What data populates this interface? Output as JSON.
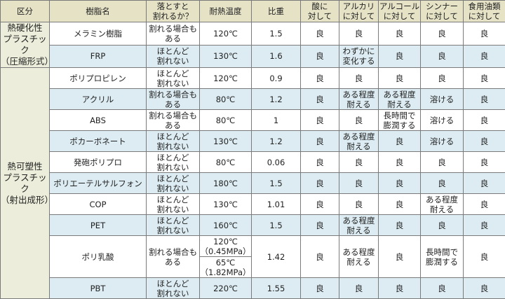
{
  "headers": [
    "区分",
    "樹脂名",
    "落とすと\n割れるか？",
    "耐熱温度",
    "比重",
    "酸に\n対して",
    "アルカリ\nに対して",
    "アルコール\nに対して",
    "シンナー\nに対して",
    "食用油類\nに対して"
  ],
  "groups": [
    {
      "label": "熱硬化性\nプラスチック\n（圧縮形式）",
      "rows": [
        {
          "name": "メラミン樹脂",
          "drop": "割れる場合も\nある",
          "heat": "120℃",
          "sg": "1.5",
          "acid": "良",
          "alkali": "良",
          "alcohol": "良",
          "thinner": "良",
          "oil": "良",
          "shaded": false
        },
        {
          "name": "FRP",
          "drop": "ほとんど\n割れない",
          "heat": "130℃",
          "sg": "1.6",
          "acid": "良",
          "alkali": "わずかに\n変化する",
          "alcohol": "良",
          "thinner": "良",
          "oil": "良",
          "shaded": true
        }
      ]
    },
    {
      "label": "熱可塑性\nプラスチック\n（射出成形）",
      "rows": [
        {
          "name": "ポリプロピレン",
          "drop": "ほとんど\n割れない",
          "heat": "120℃",
          "sg": "0.9",
          "acid": "良",
          "alkali": "良",
          "alcohol": "良",
          "thinner": "良",
          "oil": "良",
          "shaded": false
        },
        {
          "name": "アクリル",
          "drop": "割れる場合も\nある",
          "heat": "80℃",
          "sg": "1.2",
          "acid": "良",
          "alkali": "ある程度\n耐える",
          "alcohol": "ある程度\n耐える",
          "thinner": "溶ける",
          "oil": "良",
          "shaded": true
        },
        {
          "name": "ABS",
          "drop": "割れる場合も\nある",
          "heat": "80℃",
          "sg": "1",
          "acid": "良",
          "alkali": "良",
          "alcohol": "長時間で\n膨潤する",
          "thinner": "溶ける",
          "oil": "良",
          "shaded": false
        },
        {
          "name": "ポカーボネート",
          "drop": "ほとんど\n割れない",
          "heat": "130℃",
          "sg": "1.2",
          "acid": "良",
          "alkali": "ある程度\n耐える",
          "alcohol": "良",
          "thinner": "溶ける",
          "oil": "良",
          "shaded": true
        },
        {
          "name": "発砲ポリプロ",
          "drop": "ほとんど\n割れない",
          "heat": "80℃",
          "sg": "0.06",
          "acid": "良",
          "alkali": "良",
          "alcohol": "良",
          "thinner": "良",
          "oil": "良",
          "shaded": false
        },
        {
          "name": "ポリエーテルサルフォン",
          "drop": "ほとんど\n割れない",
          "heat": "180℃",
          "sg": "1.5",
          "acid": "良",
          "alkali": "良",
          "alcohol": "良",
          "thinner": "良",
          "oil": "良",
          "shaded": true
        },
        {
          "name": "COP",
          "drop": "ほとんど\n割れない",
          "heat": "130℃",
          "sg": "1.01",
          "acid": "良",
          "alkali": "良",
          "alcohol": "良",
          "thinner": "ある程度\n耐える",
          "oil": "良",
          "shaded": false
        },
        {
          "name": "PET",
          "drop": "ほとんど\n割れない",
          "heat": "160℃",
          "sg": "1.5",
          "acid": "良",
          "alkali": "ある程度\n耐える",
          "alcohol": "良",
          "thinner": "良",
          "oil": "良",
          "shaded": true
        },
        {
          "name": "ポリ乳酸",
          "drop": "割れる場合も\nある",
          "heat": [
            "120℃\n（0.45MPa）",
            "65℃\n（1.82MPa）"
          ],
          "sg": "1.42",
          "acid": "良",
          "alkali": "ある程度\n耐える",
          "alcohol": "良",
          "thinner": "長時間で\n膨潤する",
          "oil": "良",
          "shaded": false
        },
        {
          "name": "PBT",
          "drop": "ほとんど\n割れない",
          "heat": "220℃",
          "sg": "1.55",
          "acid": "良",
          "alkali": "良",
          "alcohol": "良",
          "thinner": "良",
          "oil": "良",
          "shaded": true
        }
      ]
    }
  ],
  "colors": {
    "header": "#e5e2c6",
    "group": "#eceedb",
    "shaded": "#dcecf2",
    "border": "#7a7a7a"
  }
}
